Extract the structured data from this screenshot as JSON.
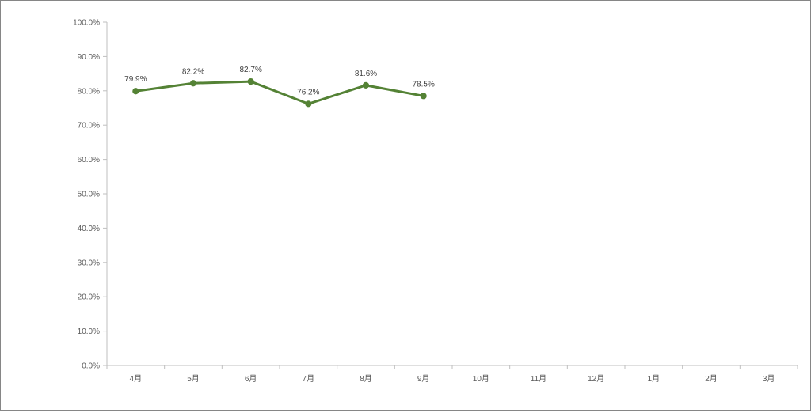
{
  "chart_data": {
    "type": "line",
    "categories": [
      "4月",
      "5月",
      "6月",
      "7月",
      "8月",
      "9月",
      "10月",
      "11月",
      "12月",
      "1月",
      "2月",
      "3月"
    ],
    "series": [
      {
        "values": [
          79.9,
          82.2,
          82.7,
          76.2,
          81.6,
          78.5,
          null,
          null,
          null,
          null,
          null,
          null
        ],
        "data_labels": [
          "79.9%",
          "82.2%",
          "82.7%",
          "76.2%",
          "81.6%",
          "78.5%"
        ],
        "color": "#548235"
      }
    ],
    "ylim": [
      0,
      100
    ],
    "yticks": [
      0,
      10,
      20,
      30,
      40,
      50,
      60,
      70,
      80,
      90,
      100
    ],
    "ytick_labels": [
      "0.0%",
      "10.0%",
      "20.0%",
      "30.0%",
      "40.0%",
      "50.0%",
      "60.0%",
      "70.0%",
      "80.0%",
      "90.0%",
      "100.0%"
    ],
    "grid": false,
    "legend": "none",
    "axis_color": "#bfbfbf"
  }
}
